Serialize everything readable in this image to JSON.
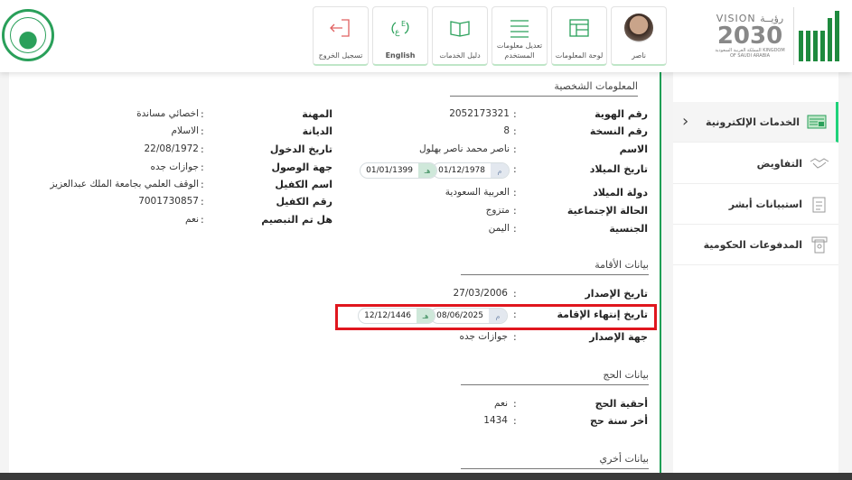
{
  "header": {
    "buttons": [
      {
        "label": "ناصر",
        "icon": "user-avatar"
      },
      {
        "label": "لوحة المعلومات",
        "icon": "dashboard-icon"
      },
      {
        "label": "تعديل معلومات المستخدم",
        "icon": "sliders-icon"
      },
      {
        "label": "دليل الخدمات",
        "icon": "book-icon"
      },
      {
        "label": "English",
        "icon": "language-icon"
      },
      {
        "label": "تسجيل الخروج",
        "icon": "logout-icon"
      }
    ],
    "vision": {
      "line1": "VISION رؤيــة",
      "line2": "2030",
      "line3": "المملكة العربية السعودية KINGDOM OF SAUDI ARABIA"
    },
    "brand": "أبشر"
  },
  "sidebar": {
    "items": [
      {
        "label": "الخدمات الإلكترونية",
        "icon": "eservices-icon",
        "active": true
      },
      {
        "label": "التفاويض",
        "icon": "handshake-icon"
      },
      {
        "label": "استبيانات أبشر",
        "icon": "survey-icon"
      },
      {
        "label": "المدفوعات الحكومية",
        "icon": "payment-icon"
      }
    ]
  },
  "personal": {
    "title": "المعلومات الشخصية",
    "right": [
      {
        "label": "رقم الهوية",
        "value": "2052173321"
      },
      {
        "label": "رقم النسخة",
        "value": "8"
      },
      {
        "label": "الاسم",
        "value": "ناصر محمد ناصر بهلول"
      },
      {
        "label": "تاريخ الميلاد",
        "greg": "01/12/1978",
        "hijri": "01/01/1399"
      },
      {
        "label": "دولة الميلاد",
        "value": "العربية السعودية"
      },
      {
        "label": "الحالة الإجتماعية",
        "value": "متزوج"
      },
      {
        "label": "الجنسية",
        "value": "اليمن"
      }
    ],
    "left": [
      {
        "label": "المهنة",
        "value": "اخصائي مساندة"
      },
      {
        "label": "الديانة",
        "value": "الاسلام"
      },
      {
        "label": "تاريخ الدخول",
        "value": "22/08/1972"
      },
      {
        "label": "جهة الوصول",
        "value": "جوازات جده"
      },
      {
        "label": "اسم الكفيل",
        "value": "الوقف العلمي بجامعة الملك عبدالعزيز"
      },
      {
        "label": "رقم الكفيل",
        "value": "7001730857"
      },
      {
        "label": "هل تم التبصيم",
        "value": "نعم"
      }
    ]
  },
  "residency": {
    "title": "بيانات الأقامة",
    "rows": [
      {
        "label": "تاريخ الإصدار",
        "value": "27/03/2006"
      },
      {
        "label": "تاريخ إنتهاء الإقامة",
        "greg": "08/06/2025",
        "hijri": "12/12/1446"
      },
      {
        "label": "جهة الإصدار",
        "value": "جوازات جده"
      }
    ]
  },
  "hajj": {
    "title": "بيانات الحج",
    "rows": [
      {
        "label": "أحقية الحج",
        "value": "نعم"
      },
      {
        "label": "أخر سنة حج",
        "value": "1434"
      }
    ]
  },
  "other": {
    "title": "بيانات أخري"
  },
  "date_tags": {
    "greg": "م",
    "hijri": "هـ"
  },
  "colon": ":",
  "colors": {
    "accent": "#1e9e55",
    "highlight": "#e0161e"
  }
}
